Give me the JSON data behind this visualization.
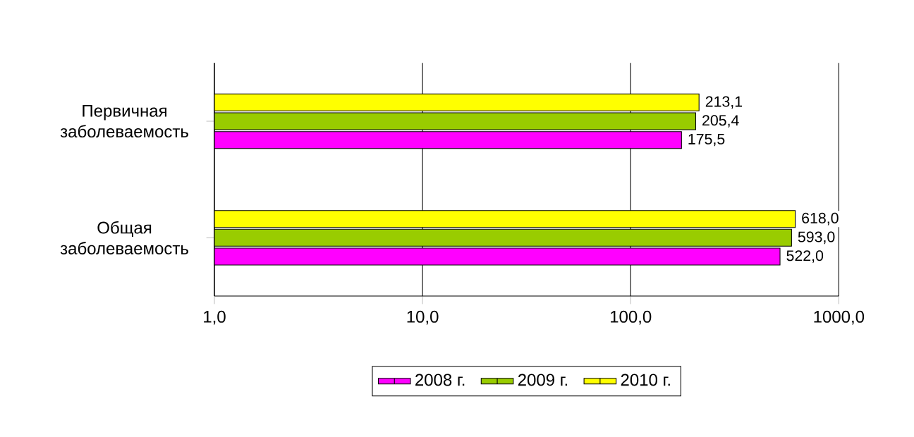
{
  "chart_data": {
    "type": "bar",
    "orientation": "horizontal",
    "log": "x",
    "grid": "x",
    "legend": "bottom",
    "categories": [
      "Первичная заболеваемость",
      "Общая заболеваемость"
    ],
    "series": [
      {
        "name": "2008 г.",
        "color": "#ff00ff",
        "values": [
          175.5,
          522.0
        ],
        "value_labels": [
          "175,5",
          "522,0"
        ]
      },
      {
        "name": "2009 г.",
        "color": "#99cc00",
        "values": [
          205.4,
          593.0
        ],
        "value_labels": [
          "205,4",
          "593,0"
        ]
      },
      {
        "name": "2010 г.",
        "color": "#ffff00",
        "values": [
          213.1,
          618.0
        ],
        "value_labels": [
          "213,1",
          "618,0"
        ]
      }
    ],
    "xlim": [
      1,
      1000
    ],
    "xticks": [
      {
        "value": 1,
        "label": "1,0"
      },
      {
        "value": 10,
        "label": "10,0"
      },
      {
        "value": 100,
        "label": "100,0"
      },
      {
        "value": 1000,
        "label": "1000,0"
      }
    ]
  }
}
